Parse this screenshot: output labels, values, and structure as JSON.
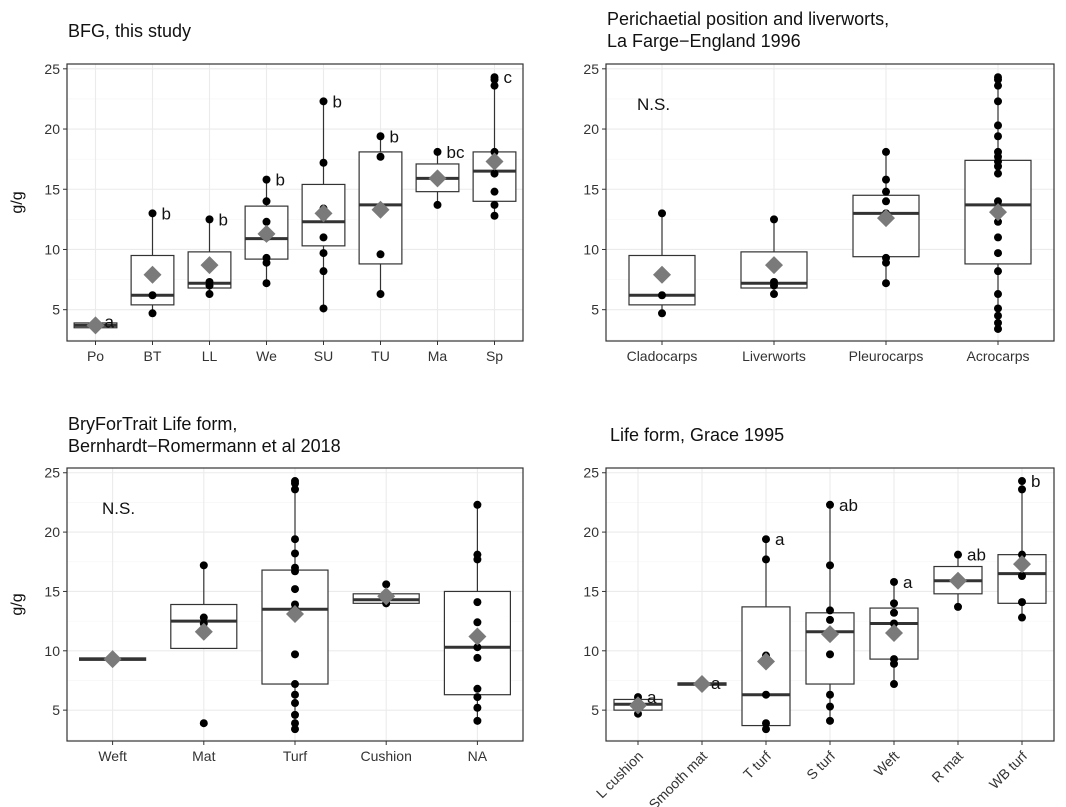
{
  "chart_data": [
    {
      "type": "box",
      "title": "BFG, this study",
      "ylabel": "g/g",
      "ylim": [
        2.4,
        25.4
      ],
      "yticks": [
        5,
        10,
        15,
        20,
        25
      ],
      "grid": true,
      "annotation": "",
      "categories": [
        "Po",
        "BT",
        "LL",
        "We",
        "SU",
        "TU",
        "Ma",
        "Sp"
      ],
      "boxes": [
        {
          "q1": 3.5,
          "median": 3.7,
          "q3": 3.9,
          "whisker_low": 3.4,
          "whisker_high": 4.0,
          "mean": 3.7,
          "points": [
            3.5,
            3.9
          ],
          "letter": "a"
        },
        {
          "q1": 5.4,
          "median": 6.2,
          "q3": 9.5,
          "whisker_low": 4.7,
          "whisker_high": 13.0,
          "mean": 7.9,
          "points": [
            4.7,
            6.2,
            13.0
          ],
          "letter": "b"
        },
        {
          "q1": 6.8,
          "median": 7.2,
          "q3": 9.8,
          "whisker_low": 6.3,
          "whisker_high": 12.5,
          "mean": 8.7,
          "points": [
            6.3,
            7.0,
            7.3,
            12.5
          ],
          "letter": "b"
        },
        {
          "q1": 9.2,
          "median": 10.9,
          "q3": 13.6,
          "whisker_low": 7.2,
          "whisker_high": 15.8,
          "mean": 11.3,
          "points": [
            7.2,
            8.9,
            9.3,
            11.0,
            12.3,
            14.0,
            15.8
          ],
          "letter": "b"
        },
        {
          "q1": 10.3,
          "median": 12.3,
          "q3": 15.4,
          "whisker_low": 5.1,
          "whisker_high": 22.3,
          "mean": 13.0,
          "points": [
            5.1,
            8.2,
            9.7,
            11.0,
            12.7,
            13.4,
            17.2,
            22.3
          ],
          "letter": "b"
        },
        {
          "q1": 8.8,
          "median": 13.7,
          "q3": 18.1,
          "whisker_low": 6.3,
          "whisker_high": 19.4,
          "mean": 13.3,
          "points": [
            6.3,
            9.6,
            17.7,
            19.4
          ],
          "letter": "b"
        },
        {
          "q1": 14.8,
          "median": 15.9,
          "q3": 17.1,
          "whisker_low": 13.7,
          "whisker_high": 18.1,
          "mean": 15.9,
          "points": [
            13.7,
            18.1
          ],
          "letter": "bc"
        },
        {
          "q1": 14.0,
          "median": 16.5,
          "q3": 18.1,
          "whisker_low": 12.8,
          "whisker_high": 24.3,
          "mean": 17.3,
          "points": [
            12.8,
            13.7,
            14.8,
            16.3,
            17.3,
            18.1,
            23.6,
            24.1,
            24.3
          ],
          "letter": "c"
        }
      ]
    },
    {
      "type": "box",
      "title": "Perichaetial position and liverworts,\nLa Farge−England 1996",
      "ylabel": "",
      "ylim": [
        2.4,
        25.4
      ],
      "yticks": [
        5,
        10,
        15,
        20,
        25
      ],
      "grid": true,
      "annotation": "N.S.",
      "categories": [
        "Cladocarps",
        "Liverworts",
        "Pleurocarps",
        "Acrocarps"
      ],
      "boxes": [
        {
          "q1": 5.4,
          "median": 6.2,
          "q3": 9.5,
          "whisker_low": 4.7,
          "whisker_high": 13.0,
          "mean": 7.9,
          "points": [
            4.7,
            6.2,
            13.0
          ],
          "letter": ""
        },
        {
          "q1": 6.8,
          "median": 7.2,
          "q3": 9.8,
          "whisker_low": 6.3,
          "whisker_high": 12.5,
          "mean": 8.7,
          "points": [
            6.3,
            7.0,
            7.3,
            12.5
          ],
          "letter": ""
        },
        {
          "q1": 9.4,
          "median": 13.0,
          "q3": 14.5,
          "whisker_low": 7.2,
          "whisker_high": 18.1,
          "mean": 12.6,
          "points": [
            7.2,
            8.9,
            9.3,
            13.0,
            14.0,
            14.8,
            15.8,
            18.1
          ],
          "letter": ""
        },
        {
          "q1": 8.8,
          "median": 13.7,
          "q3": 17.4,
          "whisker_low": 3.4,
          "whisker_high": 24.3,
          "mean": 13.1,
          "points": [
            3.4,
            3.9,
            4.5,
            5.1,
            6.3,
            8.2,
            9.7,
            11.0,
            12.3,
            13.4,
            14.0,
            16.3,
            16.9,
            17.3,
            17.7,
            18.1,
            19.4,
            20.3,
            22.3,
            23.6,
            24.1,
            24.3
          ],
          "letter": ""
        }
      ]
    },
    {
      "type": "box",
      "title": "BryForTrait Life form,\nBernhardt−Romermann et al 2018",
      "ylabel": "g/g",
      "ylim": [
        2.4,
        25.4
      ],
      "yticks": [
        5,
        10,
        15,
        20,
        25
      ],
      "grid": true,
      "annotation": "N.S.",
      "categories": [
        "Weft",
        "Mat",
        "Turf",
        "Cushion",
        "NA"
      ],
      "boxes": [
        {
          "q1": 9.2,
          "median": 9.3,
          "q3": 9.4,
          "whisker_low": 9.2,
          "whisker_high": 9.4,
          "mean": 9.3,
          "points": [],
          "letter": ""
        },
        {
          "q1": 10.2,
          "median": 12.5,
          "q3": 13.9,
          "whisker_low": 10.2,
          "whisker_high": 17.2,
          "mean": 11.6,
          "points": [
            3.9,
            12.3,
            12.8,
            17.2
          ],
          "letter": ""
        },
        {
          "q1": 7.2,
          "median": 13.5,
          "q3": 16.8,
          "whisker_low": 3.4,
          "whisker_high": 24.3,
          "mean": 13.1,
          "points": [
            3.4,
            3.9,
            4.6,
            5.6,
            6.3,
            7.2,
            9.7,
            12.9,
            13.5,
            13.9,
            15.2,
            16.7,
            17.0,
            18.2,
            19.4,
            23.6,
            24.1,
            24.3
          ],
          "letter": ""
        },
        {
          "q1": 14.0,
          "median": 14.3,
          "q3": 14.8,
          "whisker_low": 14.0,
          "whisker_high": 15.6,
          "mean": 14.6,
          "points": [
            14.0,
            15.6
          ],
          "letter": ""
        },
        {
          "q1": 6.3,
          "median": 10.3,
          "q3": 15.0,
          "whisker_low": 4.1,
          "whisker_high": 22.3,
          "mean": 11.2,
          "points": [
            4.1,
            5.2,
            6.1,
            6.8,
            9.4,
            10.3,
            12.4,
            14.1,
            17.7,
            18.1,
            22.3
          ],
          "letter": ""
        }
      ]
    },
    {
      "type": "box",
      "title": "Life form, Grace 1995",
      "ylabel": "",
      "ylim": [
        2.4,
        25.4
      ],
      "yticks": [
        5,
        10,
        15,
        20,
        25
      ],
      "grid": true,
      "annotation": "",
      "categories": [
        "L cushion",
        "Smooth mat",
        "T turf",
        "S turf",
        "Weft",
        "R mat",
        "WB turf"
      ],
      "boxes": [
        {
          "q1": 5.0,
          "median": 5.5,
          "q3": 5.9,
          "whisker_low": 4.7,
          "whisker_high": 6.1,
          "mean": 5.4,
          "points": [
            4.7,
            6.1
          ],
          "letter": "a"
        },
        {
          "q1": 7.1,
          "median": 7.2,
          "q3": 7.3,
          "whisker_low": 7.1,
          "whisker_high": 7.3,
          "mean": 7.2,
          "points": [],
          "letter": "a"
        },
        {
          "q1": 3.7,
          "median": 6.3,
          "q3": 13.7,
          "whisker_low": 3.4,
          "whisker_high": 19.4,
          "mean": 9.1,
          "points": [
            3.4,
            3.9,
            6.3,
            9.6,
            17.7,
            19.4
          ],
          "letter": "a"
        },
        {
          "q1": 7.2,
          "median": 11.6,
          "q3": 13.2,
          "whisker_low": 4.1,
          "whisker_high": 22.3,
          "mean": 11.4,
          "points": [
            4.1,
            5.3,
            6.3,
            9.7,
            11.4,
            12.6,
            13.4,
            17.2,
            22.3
          ],
          "letter": "ab"
        },
        {
          "q1": 9.3,
          "median": 12.3,
          "q3": 13.6,
          "whisker_low": 7.2,
          "whisker_high": 15.8,
          "mean": 11.5,
          "points": [
            7.2,
            8.9,
            9.3,
            12.3,
            13.2,
            14.0,
            15.8
          ],
          "letter": "a"
        },
        {
          "q1": 14.8,
          "median": 15.9,
          "q3": 17.1,
          "whisker_low": 13.7,
          "whisker_high": 18.1,
          "mean": 15.9,
          "points": [
            13.7,
            18.1
          ],
          "letter": "ab"
        },
        {
          "q1": 14.0,
          "median": 16.5,
          "q3": 18.1,
          "whisker_low": 12.8,
          "whisker_high": 24.3,
          "mean": 17.3,
          "points": [
            12.8,
            14.1,
            16.3,
            18.1,
            23.6,
            24.3
          ],
          "letter": "b"
        }
      ]
    }
  ],
  "style": {
    "mean_color": "#7a7a7a",
    "point_color": "#000000",
    "grid_major": "#ebebeb",
    "grid_minor": "#f5f5f5",
    "box_fill": "#ffffff",
    "box_stroke": "#333333"
  }
}
